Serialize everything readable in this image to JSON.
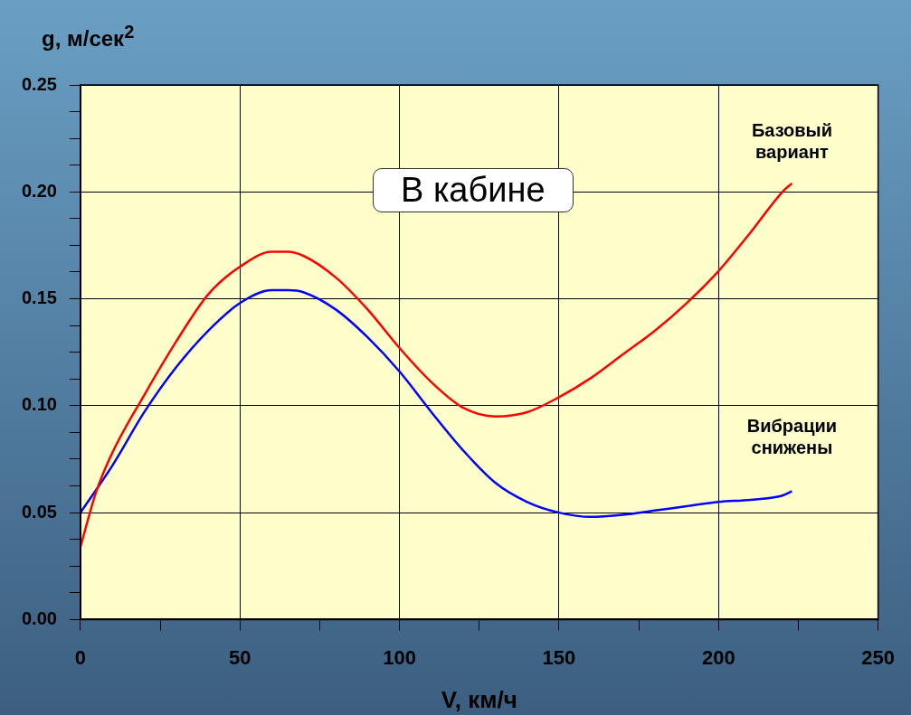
{
  "chart_data": {
    "type": "line",
    "xlabel": "V, км/ч",
    "ylabel": "g, м/сек$^{2}$",
    "annotations": [
      "В кабине"
    ],
    "xlim": [
      0,
      250
    ],
    "xticks": [
      0,
      {
        "value": 25,
        "label": null
      },
      50,
      {
        "value": 75,
        "label": null
      },
      100,
      {
        "value": 125,
        "label": null
      },
      150,
      {
        "value": 175,
        "label": null
      },
      200,
      {
        "value": 225,
        "label": null
      },
      250
    ],
    "ylim": [
      0,
      0.25
    ],
    "yticks": [
      {
        "value": 0,
        "label": "0.00"
      },
      {
        "value": 0.0125,
        "label": null
      },
      {
        "value": 0.025,
        "label": null
      },
      {
        "value": 0.0375,
        "label": null
      },
      {
        "value": 0.05,
        "label": "0.05"
      },
      {
        "value": 0.0625,
        "label": null
      },
      {
        "value": 0.075,
        "label": null
      },
      {
        "value": 0.0875,
        "label": null
      },
      {
        "value": 0.1,
        "label": "0.10"
      },
      {
        "value": 0.1125,
        "label": null
      },
      {
        "value": 0.125,
        "label": null
      },
      {
        "value": 0.1375,
        "label": null
      },
      {
        "value": 0.15,
        "label": "0.15"
      },
      {
        "value": 0.1625,
        "label": null
      },
      {
        "value": 0.175,
        "label": null
      },
      {
        "value": 0.1875,
        "label": null
      },
      {
        "value": 0.2,
        "label": "0.20"
      },
      {
        "value": 0.2125,
        "label": null
      },
      {
        "value": 0.225,
        "label": null
      },
      {
        "value": 0.2375,
        "label": null
      },
      {
        "value": 0.25,
        "label": "0.25"
      }
    ],
    "grid": true,
    "legend": false,
    "marker": "none",
    "line_style": "solid",
    "series": [
      {
        "name": "Базовый\nвариант",
        "color": "#ff0000",
        "x": [
          0,
          5,
          10,
          20,
          30,
          40,
          50,
          60,
          65,
          70,
          80,
          90,
          100,
          110,
          120,
          130,
          140,
          150,
          160,
          170,
          180,
          190,
          200,
          210,
          220,
          223
        ],
        "values": [
          0.034,
          0.06,
          0.078,
          0.105,
          0.13,
          0.152,
          0.165,
          0.172,
          0.172,
          0.17,
          0.16,
          0.145,
          0.127,
          0.111,
          0.099,
          0.095,
          0.097,
          0.104,
          0.113,
          0.124,
          0.135,
          0.148,
          0.163,
          0.181,
          0.2,
          0.204
        ]
      },
      {
        "name": "Вибрации\nснижены",
        "color": "#0000ff",
        "x": [
          0,
          10,
          20,
          30,
          40,
          50,
          60,
          65,
          70,
          80,
          90,
          100,
          110,
          120,
          130,
          140,
          150,
          160,
          170,
          180,
          190,
          200,
          210,
          220,
          223
        ],
        "values": [
          0.05,
          0.072,
          0.097,
          0.118,
          0.135,
          0.148,
          0.154,
          0.154,
          0.153,
          0.145,
          0.132,
          0.116,
          0.097,
          0.079,
          0.064,
          0.055,
          0.05,
          0.048,
          0.049,
          0.051,
          0.053,
          0.055,
          0.056,
          0.058,
          0.06
        ]
      }
    ]
  }
}
